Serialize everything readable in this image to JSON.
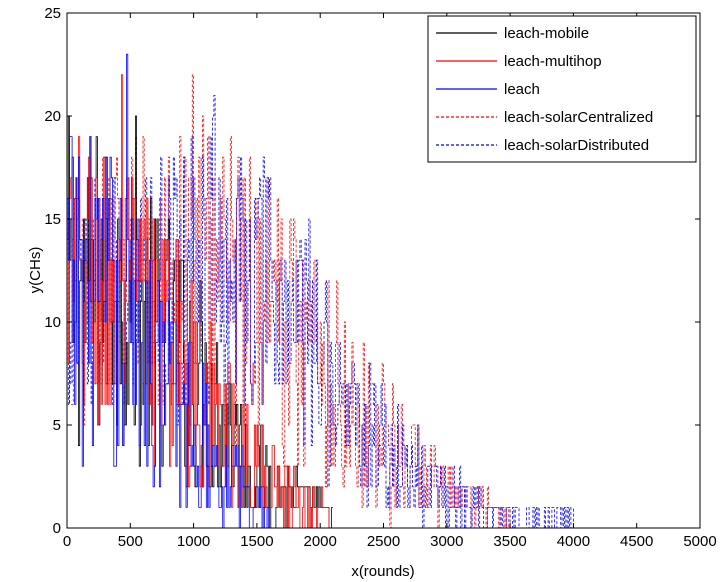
{
  "chart_data": {
    "type": "line",
    "title": "",
    "xlabel": "x(rounds)",
    "ylabel": "y(CHs)",
    "xlim": [
      0,
      5000
    ],
    "ylim": [
      0,
      25
    ],
    "xticks": [
      "0",
      "500",
      "1000",
      "1500",
      "2000",
      "2500",
      "3000",
      "3500",
      "4000",
      "4500",
      "5000"
    ],
    "yticks": [
      "0",
      "5",
      "10",
      "15",
      "20",
      "25"
    ],
    "grid": false,
    "legend_position": "top-right",
    "series": [
      {
        "name": "leach-mobile",
        "color": "#000000",
        "dash": "solid",
        "range": [
          0,
          2100
        ],
        "envelope": {
          "x": [
            0,
            300,
            600,
            900,
            1200,
            1500,
            1800,
            2100
          ],
          "low": [
            3,
            4,
            3,
            2,
            1,
            0,
            0,
            0
          ],
          "high": [
            20,
            19,
            17,
            14,
            10,
            5,
            3,
            1
          ]
        },
        "peak": {
          "x": 540,
          "y": 20
        }
      },
      {
        "name": "leach-multihop",
        "color": "#ff0000",
        "dash": "solid",
        "range": [
          0,
          2100
        ],
        "envelope": {
          "x": [
            0,
            300,
            600,
            900,
            1200,
            1500,
            1800,
            2100
          ],
          "low": [
            3,
            3,
            3,
            2,
            1,
            0,
            0,
            0
          ],
          "high": [
            20,
            19,
            17,
            14,
            9,
            5,
            3,
            1
          ]
        },
        "peak": {
          "x": 430,
          "y": 22
        }
      },
      {
        "name": "leach",
        "color": "#0000ff",
        "dash": "solid",
        "range": [
          0,
          1600
        ],
        "envelope": {
          "x": [
            0,
            300,
            600,
            900,
            1200,
            1600
          ],
          "low": [
            3,
            3,
            2,
            0,
            0,
            0
          ],
          "high": [
            20,
            19,
            15,
            11,
            6,
            1
          ]
        },
        "peak": {
          "x": 470,
          "y": 23
        }
      },
      {
        "name": "leach-solarCentralized",
        "color": "#ff0000",
        "dash": "dashed",
        "range": [
          0,
          3500
        ],
        "envelope": {
          "x": [
            0,
            500,
            1000,
            1500,
            2000,
            2500,
            3000,
            3500
          ],
          "low": [
            4,
            6,
            5,
            4,
            2,
            0,
            0,
            0
          ],
          "high": [
            18,
            19,
            21,
            19,
            14,
            8,
            3,
            1
          ]
        },
        "peak": {
          "x": 990,
          "y": 22
        }
      },
      {
        "name": "leach-solarDistributed",
        "color": "#0000ff",
        "dash": "dashed",
        "range": [
          0,
          4000
        ],
        "envelope": {
          "x": [
            0,
            500,
            1000,
            1500,
            2000,
            2500,
            3000,
            3500,
            4000
          ],
          "low": [
            4,
            6,
            5,
            4,
            2,
            0,
            0,
            0,
            0
          ],
          "high": [
            17,
            18,
            20,
            19,
            14,
            7,
            3,
            1,
            1
          ]
        },
        "peak": {
          "x": 1160,
          "y": 21
        }
      }
    ]
  }
}
